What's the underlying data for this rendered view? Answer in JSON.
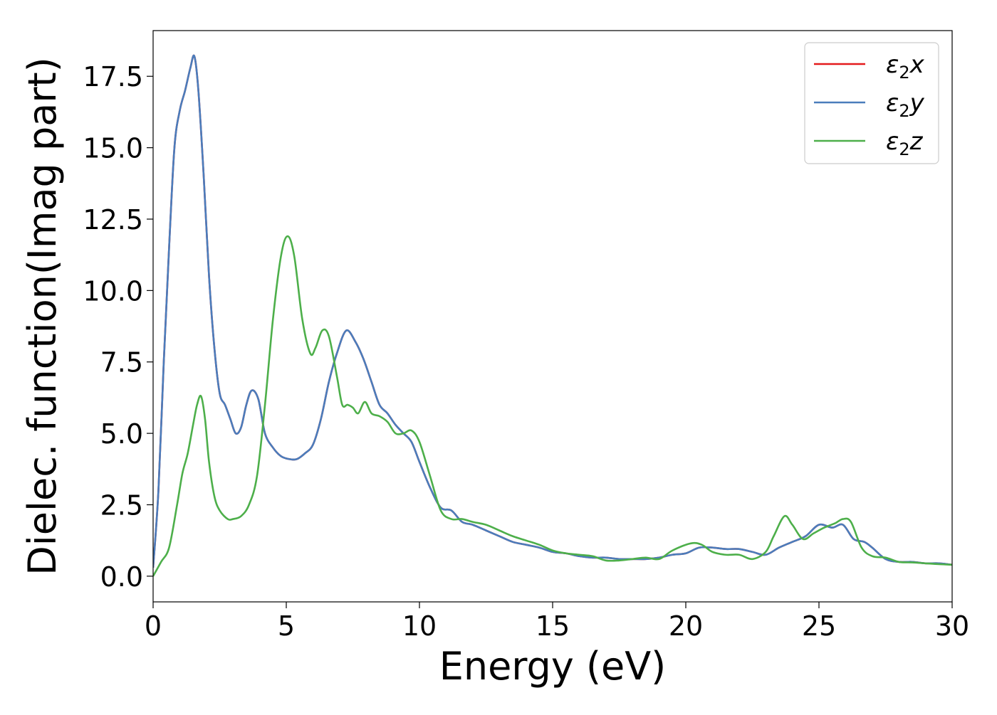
{
  "chart_data": {
    "type": "line",
    "xlabel": "Energy (eV)",
    "ylabel": "Dielec. function(Imag part)",
    "xlim": [
      0,
      30
    ],
    "ylim": [
      -0.9,
      19.1
    ],
    "xticks": [
      0,
      5,
      10,
      15,
      20,
      25,
      30
    ],
    "xtick_labels": [
      "0",
      "5",
      "10",
      "15",
      "20",
      "25",
      "30"
    ],
    "yticks": [
      0.0,
      2.5,
      5.0,
      7.5,
      10.0,
      12.5,
      15.0,
      17.5
    ],
    "ytick_labels": [
      "0.0",
      "2.5",
      "5.0",
      "7.5",
      "10.0",
      "12.5",
      "15.0",
      "17.5"
    ],
    "grid": false,
    "legend_position": "top-right",
    "series": [
      {
        "name": "ε₂x",
        "legend_base": "ε",
        "legend_sub": "2",
        "legend_var": "x",
        "color": "#e41a1c",
        "x": [
          0,
          0.2,
          0.4,
          0.6,
          0.8,
          1.0,
          1.2,
          1.4,
          1.55,
          1.7,
          1.9,
          2.1,
          2.3,
          2.5,
          2.7,
          2.9,
          3.1,
          3.3,
          3.5,
          3.7,
          3.95,
          4.2,
          4.5,
          4.8,
          5.1,
          5.4,
          5.7,
          6.0,
          6.3,
          6.6,
          6.9,
          7.25,
          7.6,
          7.9,
          8.2,
          8.5,
          8.8,
          9.1,
          9.4,
          9.7,
          10.0,
          10.4,
          10.8,
          11.2,
          11.6,
          12.0,
          12.5,
          13.0,
          13.5,
          14.0,
          14.5,
          15.0,
          15.5,
          16.0,
          16.5,
          17.0,
          17.5,
          18.0,
          18.5,
          19.0,
          19.5,
          20.0,
          20.5,
          21.0,
          21.5,
          22.0,
          22.5,
          23.0,
          23.5,
          24.0,
          24.5,
          25.0,
          25.5,
          25.9,
          26.3,
          26.7,
          27.0,
          27.5,
          28.0,
          28.5,
          29.0,
          29.5,
          30.0
        ],
        "y": [
          0.3,
          3.0,
          7.5,
          11.5,
          15.0,
          16.3,
          17.0,
          17.8,
          18.2,
          17.0,
          14.0,
          10.5,
          8.0,
          6.4,
          6.0,
          5.5,
          5.0,
          5.2,
          6.0,
          6.5,
          6.2,
          5.0,
          4.5,
          4.2,
          4.1,
          4.1,
          4.3,
          4.6,
          5.5,
          6.8,
          7.8,
          8.6,
          8.2,
          7.6,
          6.8,
          6.0,
          5.7,
          5.3,
          5.0,
          4.7,
          4.0,
          3.1,
          2.4,
          2.3,
          1.9,
          1.8,
          1.6,
          1.4,
          1.2,
          1.1,
          1.0,
          0.85,
          0.8,
          0.7,
          0.65,
          0.65,
          0.6,
          0.6,
          0.6,
          0.65,
          0.75,
          0.8,
          1.0,
          1.0,
          0.95,
          0.95,
          0.85,
          0.75,
          1.0,
          1.2,
          1.4,
          1.8,
          1.7,
          1.8,
          1.3,
          1.2,
          1.0,
          0.6,
          0.5,
          0.5,
          0.45,
          0.45,
          0.4
        ]
      },
      {
        "name": "ε₂y",
        "legend_base": "ε",
        "legend_sub": "2",
        "legend_var": "y",
        "color": "#4a7dbc",
        "x": [
          0,
          0.2,
          0.4,
          0.6,
          0.8,
          1.0,
          1.2,
          1.4,
          1.55,
          1.7,
          1.9,
          2.1,
          2.3,
          2.5,
          2.7,
          2.9,
          3.1,
          3.3,
          3.5,
          3.7,
          3.95,
          4.2,
          4.5,
          4.8,
          5.1,
          5.4,
          5.7,
          6.0,
          6.3,
          6.6,
          6.9,
          7.25,
          7.6,
          7.9,
          8.2,
          8.5,
          8.8,
          9.1,
          9.4,
          9.7,
          10.0,
          10.4,
          10.8,
          11.2,
          11.6,
          12.0,
          12.5,
          13.0,
          13.5,
          14.0,
          14.5,
          15.0,
          15.5,
          16.0,
          16.5,
          17.0,
          17.5,
          18.0,
          18.5,
          19.0,
          19.5,
          20.0,
          20.5,
          21.0,
          21.5,
          22.0,
          22.5,
          23.0,
          23.5,
          24.0,
          24.5,
          25.0,
          25.5,
          25.9,
          26.3,
          26.7,
          27.0,
          27.5,
          28.0,
          28.5,
          29.0,
          29.5,
          30.0
        ],
        "y": [
          0.3,
          3.0,
          7.5,
          11.5,
          15.0,
          16.3,
          17.0,
          17.8,
          18.2,
          17.0,
          14.0,
          10.5,
          8.0,
          6.4,
          6.0,
          5.5,
          5.0,
          5.2,
          6.0,
          6.5,
          6.2,
          5.0,
          4.5,
          4.2,
          4.1,
          4.1,
          4.3,
          4.6,
          5.5,
          6.8,
          7.8,
          8.6,
          8.2,
          7.6,
          6.8,
          6.0,
          5.7,
          5.3,
          5.0,
          4.7,
          4.0,
          3.1,
          2.4,
          2.3,
          1.9,
          1.8,
          1.6,
          1.4,
          1.2,
          1.1,
          1.0,
          0.85,
          0.8,
          0.7,
          0.65,
          0.65,
          0.6,
          0.6,
          0.6,
          0.65,
          0.75,
          0.8,
          1.0,
          1.0,
          0.95,
          0.95,
          0.85,
          0.75,
          1.0,
          1.2,
          1.4,
          1.8,
          1.7,
          1.8,
          1.3,
          1.2,
          1.0,
          0.6,
          0.5,
          0.5,
          0.45,
          0.45,
          0.4
        ]
      },
      {
        "name": "ε₂z",
        "legend_base": "ε",
        "legend_sub": "2",
        "legend_var": "z",
        "color": "#4daf4a",
        "x": [
          0,
          0.3,
          0.6,
          0.9,
          1.1,
          1.3,
          1.5,
          1.65,
          1.8,
          1.95,
          2.1,
          2.3,
          2.5,
          2.8,
          3.0,
          3.3,
          3.6,
          3.9,
          4.2,
          4.5,
          4.8,
          5.05,
          5.3,
          5.6,
          5.9,
          6.1,
          6.35,
          6.6,
          6.9,
          7.1,
          7.3,
          7.5,
          7.7,
          7.95,
          8.2,
          8.5,
          8.8,
          9.1,
          9.4,
          9.7,
          10.0,
          10.4,
          10.8,
          11.2,
          11.6,
          12.0,
          12.5,
          13.0,
          13.5,
          14.0,
          14.5,
          15.0,
          15.5,
          16.0,
          16.5,
          17.0,
          17.5,
          18.0,
          18.5,
          19.0,
          19.5,
          20.2,
          20.6,
          21.0,
          21.5,
          22.0,
          22.5,
          23.0,
          23.3,
          23.7,
          24.0,
          24.4,
          24.8,
          25.2,
          25.6,
          25.9,
          26.2,
          26.6,
          27.0,
          27.5,
          28.0,
          28.5,
          29.0,
          29.5,
          30.0
        ],
        "y": [
          0.0,
          0.5,
          1.0,
          2.5,
          3.6,
          4.3,
          5.3,
          6.0,
          6.3,
          5.5,
          4.0,
          2.8,
          2.3,
          2.0,
          2.0,
          2.1,
          2.5,
          3.5,
          6.0,
          9.0,
          11.2,
          11.9,
          11.2,
          9.0,
          7.8,
          8.0,
          8.6,
          8.4,
          7.0,
          6.0,
          6.0,
          5.9,
          5.7,
          6.1,
          5.7,
          5.6,
          5.4,
          5.0,
          5.0,
          5.1,
          4.7,
          3.5,
          2.3,
          2.0,
          2.0,
          1.9,
          1.8,
          1.6,
          1.4,
          1.25,
          1.1,
          0.9,
          0.8,
          0.75,
          0.7,
          0.55,
          0.55,
          0.6,
          0.65,
          0.6,
          0.9,
          1.15,
          1.1,
          0.85,
          0.75,
          0.75,
          0.6,
          0.85,
          1.4,
          2.1,
          1.8,
          1.3,
          1.5,
          1.7,
          1.85,
          2.0,
          1.9,
          1.0,
          0.7,
          0.65,
          0.5,
          0.48,
          0.45,
          0.42,
          0.4
        ]
      }
    ]
  }
}
